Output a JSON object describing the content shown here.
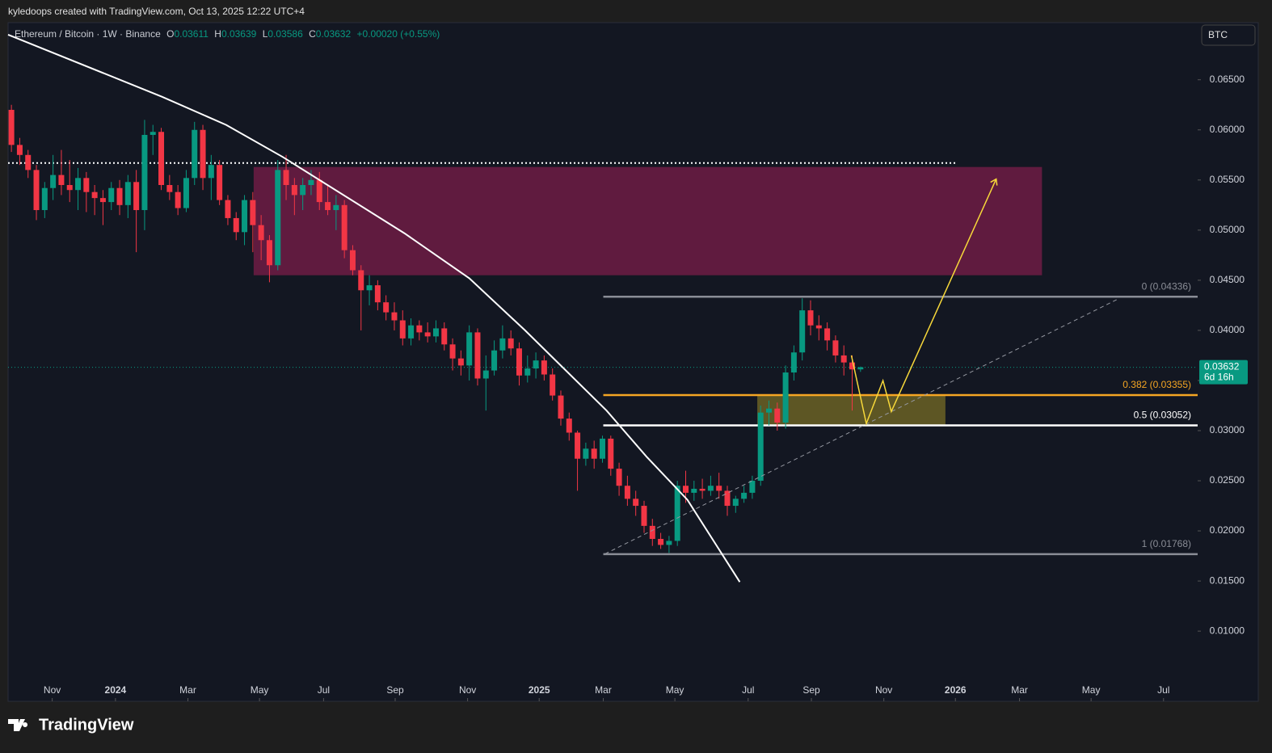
{
  "header": "kyledoops created with TradingView.com, Oct 13, 2025 12:22 UTC+4",
  "brand": "TradingView",
  "currency_button": "BTC",
  "legend": {
    "symbol": "Ethereum / Bitcoin · 1W · Binance",
    "o_label": "O",
    "o": 0.03611,
    "h_label": "H",
    "h": 0.03639,
    "l_label": "L",
    "l": 0.03586,
    "c_label": "C",
    "c": 0.03632,
    "change": "+0.00020 (+0.55%)"
  },
  "chart_data": {
    "type": "candlestick",
    "up_color": "#089981",
    "down_color": "#f23645",
    "xlim": [
      -0.4,
      142.5
    ],
    "ylim": [
      0.003,
      0.0707
    ],
    "yticks": [
      {
        "value": 0.065,
        "label": "0.06500"
      },
      {
        "value": 0.06,
        "label": "0.06000"
      },
      {
        "value": 0.055,
        "label": "0.05500"
      },
      {
        "value": 0.05,
        "label": "0.05000"
      },
      {
        "value": 0.045,
        "label": "0.04500"
      },
      {
        "value": 0.04,
        "label": "0.04000"
      },
      {
        "value": 0.035,
        "label": "0.03500"
      },
      {
        "value": 0.03,
        "label": "0.03000"
      },
      {
        "value": 0.025,
        "label": "0.02500"
      },
      {
        "value": 0.02,
        "label": "0.02000"
      },
      {
        "value": 0.015,
        "label": "0.01500"
      },
      {
        "value": 0.01,
        "label": "0.01000"
      }
    ],
    "xticks": [
      {
        "value": 4.9,
        "label": "Nov"
      },
      {
        "value": 12.5,
        "label": "2024"
      },
      {
        "value": 21.2,
        "label": "Mar"
      },
      {
        "value": 29.8,
        "label": "May"
      },
      {
        "value": 37.5,
        "label": "Jul"
      },
      {
        "value": 46.1,
        "label": "Sep"
      },
      {
        "value": 54.8,
        "label": "Nov"
      },
      {
        "value": 63.4,
        "label": "2025"
      },
      {
        "value": 71.1,
        "label": "Mar"
      },
      {
        "value": 79.7,
        "label": "May"
      },
      {
        "value": 88.5,
        "label": "Jul"
      },
      {
        "value": 96.1,
        "label": "Sep"
      },
      {
        "value": 104.8,
        "label": "Nov"
      },
      {
        "value": 113.4,
        "label": "2026"
      },
      {
        "value": 121.1,
        "label": "Mar"
      },
      {
        "value": 129.7,
        "label": "May"
      },
      {
        "value": 138.4,
        "label": "Jul"
      }
    ],
    "candles": [
      [
        0.062,
        0.0625,
        0.0578,
        0.0585
      ],
      [
        0.0585,
        0.0592,
        0.0565,
        0.0575
      ],
      [
        0.0575,
        0.058,
        0.0552,
        0.056
      ],
      [
        0.056,
        0.0565,
        0.051,
        0.052
      ],
      [
        0.052,
        0.0548,
        0.0512,
        0.0542
      ],
      [
        0.0542,
        0.0575,
        0.053,
        0.0555
      ],
      [
        0.0555,
        0.058,
        0.0535,
        0.0545
      ],
      [
        0.0545,
        0.057,
        0.0528,
        0.054
      ],
      [
        0.054,
        0.0562,
        0.052,
        0.0552
      ],
      [
        0.0552,
        0.0558,
        0.0518,
        0.0538
      ],
      [
        0.0538,
        0.0545,
        0.0515,
        0.0532
      ],
      [
        0.0532,
        0.054,
        0.0505,
        0.0528
      ],
      [
        0.0528,
        0.0548,
        0.052,
        0.0542
      ],
      [
        0.0542,
        0.055,
        0.0515,
        0.0525
      ],
      [
        0.0525,
        0.0555,
        0.0512,
        0.0548
      ],
      [
        0.0548,
        0.056,
        0.0478,
        0.052
      ],
      [
        0.052,
        0.061,
        0.05,
        0.0595
      ],
      [
        0.0595,
        0.0605,
        0.0575,
        0.0598
      ],
      [
        0.0598,
        0.0602,
        0.054,
        0.0545
      ],
      [
        0.0545,
        0.0555,
        0.053,
        0.0538
      ],
      [
        0.0538,
        0.0545,
        0.0515,
        0.0522
      ],
      [
        0.0522,
        0.056,
        0.0518,
        0.0552
      ],
      [
        0.0552,
        0.0608,
        0.0545,
        0.06
      ],
      [
        0.06,
        0.0605,
        0.054,
        0.0552
      ],
      [
        0.0552,
        0.0575,
        0.053,
        0.0565
      ],
      [
        0.0565,
        0.057,
        0.0525,
        0.053
      ],
      [
        0.053,
        0.0535,
        0.0505,
        0.0512
      ],
      [
        0.0512,
        0.0518,
        0.049,
        0.0498
      ],
      [
        0.0498,
        0.0535,
        0.0485,
        0.053
      ],
      [
        0.053,
        0.0538,
        0.0478,
        0.0505
      ],
      [
        0.0505,
        0.0515,
        0.047,
        0.049
      ],
      [
        0.049,
        0.0495,
        0.0448,
        0.0465
      ],
      [
        0.0465,
        0.057,
        0.046,
        0.056
      ],
      [
        0.056,
        0.0575,
        0.053,
        0.0545
      ],
      [
        0.0545,
        0.0552,
        0.0515,
        0.0535
      ],
      [
        0.0535,
        0.0552,
        0.052,
        0.0545
      ],
      [
        0.0545,
        0.056,
        0.0535,
        0.055
      ],
      [
        0.055,
        0.0558,
        0.052,
        0.0528
      ],
      [
        0.0528,
        0.0545,
        0.0515,
        0.052
      ],
      [
        0.052,
        0.0535,
        0.05,
        0.0525
      ],
      [
        0.0525,
        0.053,
        0.0472,
        0.048
      ],
      [
        0.048,
        0.0485,
        0.0455,
        0.046
      ],
      [
        0.046,
        0.0465,
        0.04,
        0.044
      ],
      [
        0.044,
        0.0455,
        0.0425,
        0.0445
      ],
      [
        0.0445,
        0.045,
        0.042,
        0.0428
      ],
      [
        0.0428,
        0.0435,
        0.041,
        0.0418
      ],
      [
        0.0418,
        0.0428,
        0.04,
        0.041
      ],
      [
        0.041,
        0.042,
        0.0385,
        0.0392
      ],
      [
        0.0392,
        0.0412,
        0.0385,
        0.0405
      ],
      [
        0.0405,
        0.041,
        0.039,
        0.0398
      ],
      [
        0.0398,
        0.0408,
        0.0388,
        0.0394
      ],
      [
        0.0394,
        0.041,
        0.0388,
        0.0402
      ],
      [
        0.0402,
        0.0408,
        0.038,
        0.0386
      ],
      [
        0.0386,
        0.0392,
        0.036,
        0.0372
      ],
      [
        0.0372,
        0.038,
        0.0355,
        0.0365
      ],
      [
        0.0365,
        0.0405,
        0.035,
        0.0398
      ],
      [
        0.0398,
        0.0402,
        0.0345,
        0.0352
      ],
      [
        0.0352,
        0.0375,
        0.032,
        0.036
      ],
      [
        0.036,
        0.039,
        0.0355,
        0.038
      ],
      [
        0.038,
        0.0405,
        0.0372,
        0.0392
      ],
      [
        0.0392,
        0.04,
        0.0375,
        0.0382
      ],
      [
        0.0382,
        0.0388,
        0.0345,
        0.0355
      ],
      [
        0.0355,
        0.0375,
        0.0348,
        0.0362
      ],
      [
        0.0362,
        0.0378,
        0.0352,
        0.037
      ],
      [
        0.037,
        0.0375,
        0.035,
        0.0356
      ],
      [
        0.0356,
        0.0362,
        0.033,
        0.0335
      ],
      [
        0.0335,
        0.034,
        0.0305,
        0.0312
      ],
      [
        0.0312,
        0.0318,
        0.029,
        0.0298
      ],
      [
        0.0298,
        0.03,
        0.024,
        0.0272
      ],
      [
        0.0272,
        0.0288,
        0.0265,
        0.0282
      ],
      [
        0.0282,
        0.029,
        0.0262,
        0.0272
      ],
      [
        0.0272,
        0.0295,
        0.0268,
        0.0292
      ],
      [
        0.0292,
        0.0295,
        0.0255,
        0.0262
      ],
      [
        0.0262,
        0.0268,
        0.0235,
        0.0245
      ],
      [
        0.0245,
        0.0255,
        0.0225,
        0.0232
      ],
      [
        0.0232,
        0.024,
        0.0215,
        0.0225
      ],
      [
        0.0225,
        0.023,
        0.0198,
        0.0205
      ],
      [
        0.0205,
        0.0212,
        0.0185,
        0.0192
      ],
      [
        0.0192,
        0.0198,
        0.0182,
        0.0186
      ],
      [
        0.0186,
        0.0195,
        0.0178,
        0.019
      ],
      [
        0.019,
        0.025,
        0.0185,
        0.0245
      ],
      [
        0.0245,
        0.026,
        0.0228,
        0.0238
      ],
      [
        0.0238,
        0.025,
        0.023,
        0.0242
      ],
      [
        0.0242,
        0.0252,
        0.0232,
        0.024
      ],
      [
        0.024,
        0.0255,
        0.0235,
        0.0245
      ],
      [
        0.0245,
        0.0258,
        0.0232,
        0.024
      ],
      [
        0.024,
        0.0245,
        0.0215,
        0.0225
      ],
      [
        0.0225,
        0.0235,
        0.0218,
        0.0232
      ],
      [
        0.0232,
        0.0245,
        0.0228,
        0.0238
      ],
      [
        0.0238,
        0.0255,
        0.0232,
        0.025
      ],
      [
        0.025,
        0.0325,
        0.0245,
        0.0318
      ],
      [
        0.0318,
        0.033,
        0.0305,
        0.0322
      ],
      [
        0.0322,
        0.0328,
        0.03,
        0.0308
      ],
      [
        0.0308,
        0.0365,
        0.0302,
        0.0358
      ],
      [
        0.0358,
        0.0385,
        0.035,
        0.0378
      ],
      [
        0.0378,
        0.0432,
        0.037,
        0.042
      ],
      [
        0.042,
        0.043,
        0.0395,
        0.0405
      ],
      [
        0.0405,
        0.0415,
        0.039,
        0.0402
      ],
      [
        0.0402,
        0.0408,
        0.038,
        0.039
      ],
      [
        0.039,
        0.0395,
        0.0368,
        0.0375
      ],
      [
        0.0375,
        0.0385,
        0.0355,
        0.0368
      ],
      [
        0.0368,
        0.0375,
        0.032,
        0.03611
      ],
      [
        0.03611,
        0.03639,
        0.03586,
        0.03632
      ]
    ],
    "price_label": {
      "value": 0.03632,
      "countdown": "6d 16h",
      "color": "#089981"
    },
    "zones": [
      {
        "from": 29.1,
        "to": 123.8,
        "top": 0.0563,
        "bottom": 0.0455,
        "color": "#6e1c44"
      },
      {
        "from": 89.6,
        "to": 112.2,
        "top": 0.0335,
        "bottom": 0.0305,
        "color": "#6b6224"
      }
    ],
    "fib": {
      "from": 71.1,
      "levels": [
        {
          "label": "0 (0.04336)",
          "value": 0.04336,
          "color": "#8a8d96"
        },
        {
          "label": "0.382 (0.03355)",
          "value": 0.03355,
          "color": "#f5a623"
        },
        {
          "label": "0.5 (0.03052)",
          "value": 0.03052,
          "color": "#ffffff"
        },
        {
          "label": "1 (0.01768)",
          "value": 0.01768,
          "color": "#8a8d96"
        }
      ]
    },
    "horizontal_line": {
      "value": 0.0567,
      "to": 113.5
    },
    "curve": [
      [
        -0.4,
        0.0695
      ],
      [
        18.1,
        0.0633
      ],
      [
        25.8,
        0.0605
      ],
      [
        32.6,
        0.0573
      ],
      [
        47.2,
        0.0497
      ],
      [
        55,
        0.0452
      ],
      [
        61.7,
        0.04
      ],
      [
        71.5,
        0.032
      ],
      [
        76.3,
        0.0274
      ],
      [
        81.2,
        0.0231
      ],
      [
        87.5,
        0.0149
      ]
    ],
    "trendline": [
      [
        71.3,
        0.0177
      ],
      [
        133.1,
        0.0432
      ]
    ],
    "projection": [
      [
        100.9,
        0.0375
      ],
      [
        102.7,
        0.0307
      ],
      [
        104.7,
        0.035
      ],
      [
        105.7,
        0.0319
      ],
      [
        118.3,
        0.0551
      ]
    ]
  }
}
